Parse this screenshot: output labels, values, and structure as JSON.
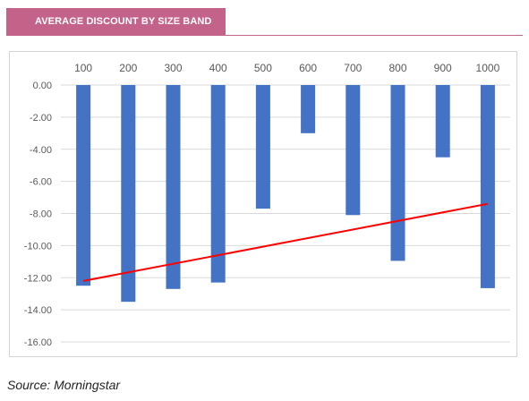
{
  "header": {
    "title": "AVERAGE DISCOUNT BY SIZE BAND"
  },
  "colors": {
    "title_band": "#c4638a",
    "bars": "#4472c4",
    "trendline": "#ff0000",
    "gridline": "#d9d9d9"
  },
  "chart_data": {
    "type": "bar",
    "title": "",
    "xlabel": "",
    "ylabel": "",
    "categories": [
      "100",
      "200",
      "300",
      "400",
      "500",
      "600",
      "700",
      "800",
      "900",
      "1000"
    ],
    "series": [
      {
        "values": [
          -12.5,
          -13.5,
          -12.7,
          -12.3,
          -7.7,
          -3.0,
          -8.1,
          -10.95,
          -4.5,
          -12.65
        ]
      }
    ],
    "trendline": {
      "type": "linear",
      "start": -12.2,
      "end": -7.4
    },
    "ylim": [
      -16,
      0
    ],
    "yticks": [
      "0.00",
      "-2.00",
      "-4.00",
      "-6.00",
      "-8.00",
      "-10.00",
      "-12.00",
      "-14.00",
      "-16.00"
    ],
    "x_axis_position": "top",
    "grid": true,
    "legend": "none"
  },
  "footer": {
    "source": "Source: Morningstar"
  }
}
